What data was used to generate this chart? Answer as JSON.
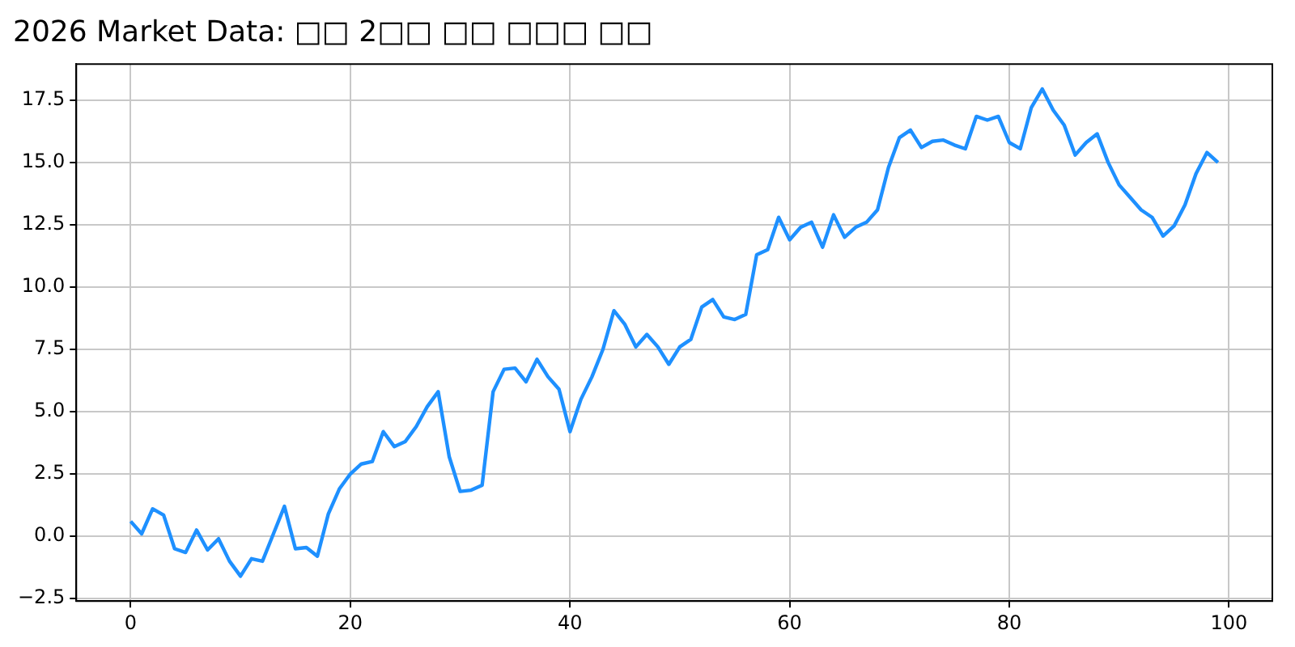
{
  "chart_data": {
    "type": "line",
    "title": "2026 Market Data: □□ 2□□ □□ □□□ □□",
    "x": [
      0,
      1,
      2,
      3,
      4,
      5,
      6,
      7,
      8,
      9,
      10,
      11,
      12,
      13,
      14,
      15,
      16,
      17,
      18,
      19,
      20,
      21,
      22,
      23,
      24,
      25,
      26,
      27,
      28,
      29,
      30,
      31,
      32,
      33,
      34,
      35,
      36,
      37,
      38,
      39,
      40,
      41,
      42,
      43,
      44,
      45,
      46,
      47,
      48,
      49,
      50,
      51,
      52,
      53,
      54,
      55,
      56,
      57,
      58,
      59,
      60,
      61,
      62,
      63,
      64,
      65,
      66,
      67,
      68,
      69,
      70,
      71,
      72,
      73,
      74,
      75,
      76,
      77,
      78,
      79,
      80,
      81,
      82,
      83,
      84,
      85,
      86,
      87,
      88,
      89,
      90,
      91,
      92,
      93,
      94,
      95,
      96,
      97,
      98,
      99
    ],
    "series": [
      {
        "color": "#1e90ff",
        "values": [
          0.6,
          0.1,
          1.1,
          0.85,
          -0.5,
          -0.65,
          0.25,
          -0.55,
          -0.1,
          -1.0,
          -1.6,
          -0.9,
          -1.0,
          0.1,
          1.2,
          -0.5,
          -0.45,
          -0.8,
          0.9,
          1.9,
          2.5,
          2.9,
          3.0,
          4.2,
          3.6,
          3.8,
          4.4,
          5.2,
          5.8,
          3.2,
          1.8,
          1.85,
          2.05,
          5.8,
          6.7,
          6.75,
          6.2,
          7.1,
          6.4,
          5.9,
          4.2,
          5.5,
          6.4,
          7.5,
          9.05,
          8.5,
          7.6,
          8.1,
          7.6,
          6.9,
          7.6,
          7.9,
          9.2,
          9.5,
          8.8,
          8.7,
          8.9,
          11.3,
          11.5,
          12.8,
          11.9,
          12.4,
          12.6,
          11.6,
          12.9,
          12.0,
          12.4,
          12.6,
          13.1,
          14.8,
          16.0,
          16.3,
          15.6,
          15.85,
          15.9,
          15.7,
          15.55,
          16.85,
          16.7,
          16.85,
          15.8,
          15.55,
          17.2,
          17.95,
          17.1,
          16.5,
          15.3,
          15.8,
          16.15,
          15.0,
          14.1,
          13.6,
          13.1,
          12.8,
          12.05,
          12.45,
          13.3,
          14.55,
          15.4,
          15.0
        ]
      }
    ],
    "xlim": [
      -4.95,
      103.95
    ],
    "xticks": [
      0,
      20,
      40,
      60,
      80,
      100
    ],
    "ylim": [
      -2.6,
      18.95
    ],
    "yticks": [
      {
        "value": -2.5,
        "label": "−2.5"
      },
      {
        "value": 0,
        "label": "0.0"
      },
      {
        "value": 2.5,
        "label": "2.5"
      },
      {
        "value": 5,
        "label": "5.0"
      },
      {
        "value": 7.5,
        "label": "7.5"
      },
      {
        "value": 10,
        "label": "10.0"
      },
      {
        "value": 12.5,
        "label": "12.5"
      },
      {
        "value": 15,
        "label": "15.0"
      },
      {
        "value": 17.5,
        "label": "17.5"
      }
    ],
    "grid": true,
    "line_style": "solid",
    "marker": "none"
  }
}
